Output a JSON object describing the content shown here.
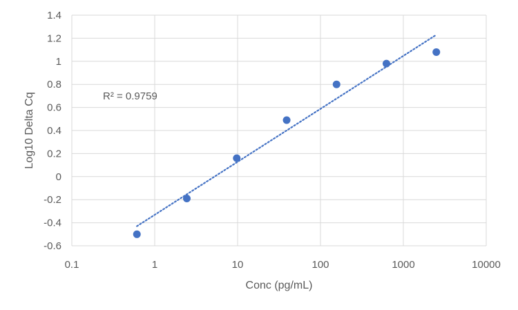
{
  "chart_data": {
    "type": "scatter",
    "title": "",
    "xlabel": "Conc (pg/mL)",
    "ylabel": "Log10 Delta Cq",
    "xscale": "log",
    "xlim": [
      0.1,
      10000
    ],
    "ylim": [
      -0.6,
      1.4
    ],
    "x_ticks": [
      {
        "value": 0.1,
        "label": "0.1"
      },
      {
        "value": 1,
        "label": "1"
      },
      {
        "value": 10,
        "label": "10"
      },
      {
        "value": 100,
        "label": "100"
      },
      {
        "value": 1000,
        "label": "1000"
      },
      {
        "value": 10000,
        "label": "10000"
      }
    ],
    "y_ticks": [
      {
        "value": -0.6,
        "label": "-0.6"
      },
      {
        "value": -0.4,
        "label": "-0.4"
      },
      {
        "value": -0.2,
        "label": "-0.2"
      },
      {
        "value": 0,
        "label": "0"
      },
      {
        "value": 0.2,
        "label": "0.2"
      },
      {
        "value": 0.4,
        "label": "0.4"
      },
      {
        "value": 0.6,
        "label": "0.6"
      },
      {
        "value": 0.8,
        "label": "0.8"
      },
      {
        "value": 1,
        "label": "1"
      },
      {
        "value": 1.2,
        "label": "1.2"
      },
      {
        "value": 1.4,
        "label": "1.4"
      }
    ],
    "grid": true,
    "series": [
      {
        "x": [
          0.61,
          2.44,
          9.77,
          39.1,
          156.3,
          625,
          2500
        ],
        "y": [
          -0.5,
          -0.19,
          0.16,
          0.49,
          0.8,
          0.98,
          1.08
        ]
      }
    ],
    "trendline": {
      "type": "logarithmic",
      "style": "dotted",
      "x_start": 0.61,
      "x_end": 2500,
      "y_start": -0.43,
      "y_end": 1.23
    },
    "annotation": "R² = 0.9759",
    "colors": {
      "marker": "#4472C4",
      "trendline": "#4472C4",
      "grid": "#d9d9d9",
      "text": "#595959"
    }
  }
}
